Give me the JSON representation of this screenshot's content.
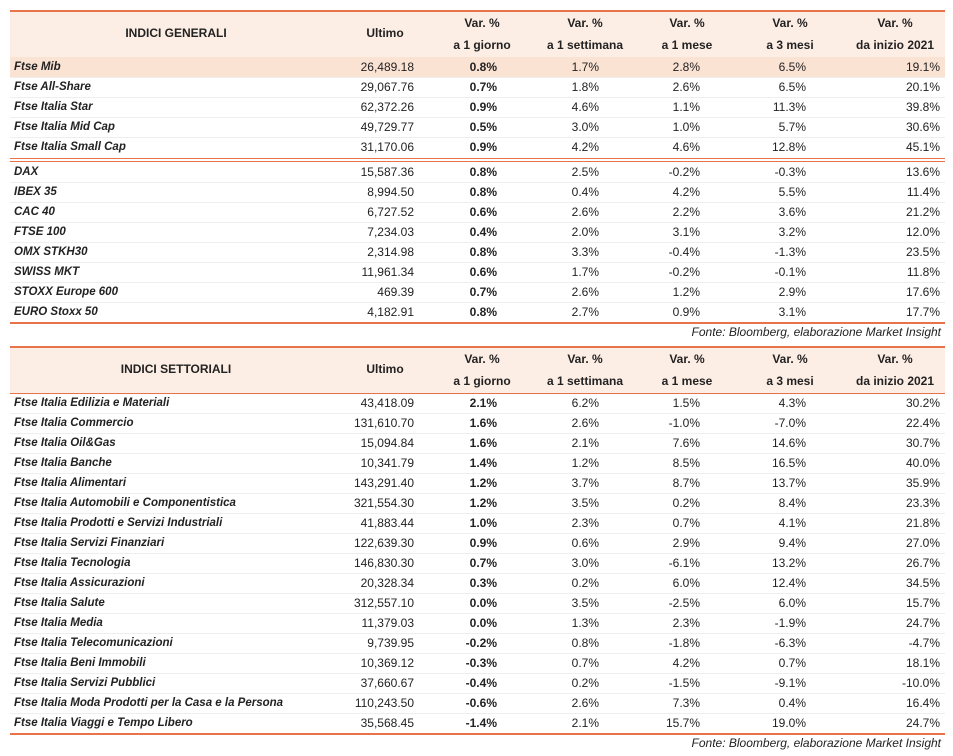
{
  "table1": {
    "header": [
      "INDICI GENERALI",
      "Ultimo",
      [
        "Var. %",
        "a 1 giorno"
      ],
      [
        "Var. %",
        "a 1 settimana"
      ],
      [
        "Var. %",
        "a 1 mese"
      ],
      [
        "Var. %",
        "a 3 mesi"
      ],
      [
        "Var. %",
        "da inizio 2021"
      ]
    ],
    "rows": [
      [
        "Ftse Mib",
        "26,489.18",
        "0.8%",
        "1.7%",
        "2.8%",
        "6.5%",
        "19.1%"
      ],
      [
        "Ftse All-Share",
        "29,067.76",
        "0.7%",
        "1.8%",
        "2.6%",
        "6.5%",
        "20.1%"
      ],
      [
        "Ftse Italia Star",
        "62,372.26",
        "0.9%",
        "4.6%",
        "1.1%",
        "11.3%",
        "39.8%"
      ],
      [
        "Ftse Italia Mid Cap",
        "49,729.77",
        "0.5%",
        "3.0%",
        "1.0%",
        "5.7%",
        "30.6%"
      ],
      [
        "Ftse Italia Small Cap",
        "31,170.06",
        "0.9%",
        "4.2%",
        "4.6%",
        "12.8%",
        "45.1%"
      ],
      [
        "DAX",
        "15,587.36",
        "0.8%",
        "2.5%",
        "-0.2%",
        "-0.3%",
        "13.6%"
      ],
      [
        "IBEX 35",
        "8,994.50",
        "0.8%",
        "0.4%",
        "4.2%",
        "5.5%",
        "11.4%"
      ],
      [
        "CAC 40",
        "6,727.52",
        "0.6%",
        "2.6%",
        "2.2%",
        "3.6%",
        "21.2%"
      ],
      [
        "FTSE 100",
        "7,234.03",
        "0.4%",
        "2.0%",
        "3.1%",
        "3.2%",
        "12.0%"
      ],
      [
        "OMX STKH30",
        "2,314.98",
        "0.8%",
        "3.3%",
        "-0.4%",
        "-1.3%",
        "23.5%"
      ],
      [
        "SWISS MKT",
        "11,961.34",
        "0.6%",
        "1.7%",
        "-0.2%",
        "-0.1%",
        "11.8%"
      ],
      [
        "STOXX Europe 600",
        "469.39",
        "0.7%",
        "2.6%",
        "1.2%",
        "2.9%",
        "17.6%"
      ],
      [
        "EURO Stoxx 50",
        "4,182.91",
        "0.8%",
        "2.7%",
        "0.9%",
        "3.1%",
        "17.7%"
      ]
    ],
    "source": "Fonte: Bloomberg, elaborazione Market Insight"
  },
  "table2": {
    "header": [
      "INDICI SETTORIALI",
      "Ultimo",
      [
        "Var. %",
        "a 1 giorno"
      ],
      [
        "Var. %",
        "a 1 settimana"
      ],
      [
        "Var. %",
        "a 1 mese"
      ],
      [
        "Var. %",
        "a 3 mesi"
      ],
      [
        "Var. %",
        "da inizio 2021"
      ]
    ],
    "rows": [
      [
        "Ftse Italia Edilizia e Materiali",
        "43,418.09",
        "2.1%",
        "6.2%",
        "1.5%",
        "4.3%",
        "30.2%"
      ],
      [
        "Ftse Italia Commercio",
        "131,610.70",
        "1.6%",
        "2.6%",
        "-1.0%",
        "-7.0%",
        "22.4%"
      ],
      [
        "Ftse Italia Oil&Gas",
        "15,094.84",
        "1.6%",
        "2.1%",
        "7.6%",
        "14.6%",
        "30.7%"
      ],
      [
        "Ftse Italia Banche",
        "10,341.79",
        "1.4%",
        "1.2%",
        "8.5%",
        "16.5%",
        "40.0%"
      ],
      [
        "Ftse Italia Alimentari",
        "143,291.40",
        "1.2%",
        "3.7%",
        "8.7%",
        "13.7%",
        "35.9%"
      ],
      [
        "Ftse Italia Automobili e Componentistica",
        "321,554.30",
        "1.2%",
        "3.5%",
        "0.2%",
        "8.4%",
        "23.3%"
      ],
      [
        "Ftse Italia Prodotti e Servizi Industriali",
        "41,883.44",
        "1.0%",
        "2.3%",
        "0.7%",
        "4.1%",
        "21.8%"
      ],
      [
        "Ftse Italia Servizi Finanziari",
        "122,639.30",
        "0.9%",
        "0.6%",
        "2.9%",
        "9.4%",
        "27.0%"
      ],
      [
        "Ftse Italia Tecnologia",
        "146,830.30",
        "0.7%",
        "3.0%",
        "-6.1%",
        "13.2%",
        "26.7%"
      ],
      [
        "Ftse Italia Assicurazioni",
        "20,328.34",
        "0.3%",
        "0.2%",
        "6.0%",
        "12.4%",
        "34.5%"
      ],
      [
        "Ftse Italia Salute",
        "312,557.10",
        "0.0%",
        "3.5%",
        "-2.5%",
        "6.0%",
        "15.7%"
      ],
      [
        "Ftse Italia Media",
        "11,379.03",
        "0.0%",
        "1.3%",
        "2.3%",
        "-1.9%",
        "24.7%"
      ],
      [
        "Ftse Italia Telecomunicazioni",
        "9,739.95",
        "-0.2%",
        "0.8%",
        "-1.8%",
        "-6.3%",
        "-4.7%"
      ],
      [
        "Ftse Italia Beni Immobili",
        "10,369.12",
        "-0.3%",
        "0.7%",
        "4.2%",
        "0.7%",
        "18.1%"
      ],
      [
        "Ftse Italia Servizi Pubblici",
        "37,660.67",
        "-0.4%",
        "0.2%",
        "-1.5%",
        "-9.1%",
        "-10.0%"
      ],
      [
        "Ftse Italia Moda Prodotti per la Casa e la Persona",
        "110,243.50",
        "-0.6%",
        "2.6%",
        "7.3%",
        "0.4%",
        "16.4%"
      ],
      [
        "Ftse Italia Viaggi e Tempo Libero",
        "35,568.45",
        "-1.4%",
        "2.1%",
        "15.7%",
        "19.0%",
        "24.7%"
      ]
    ],
    "source": "Fonte: Bloomberg, elaborazione Market Insight"
  }
}
